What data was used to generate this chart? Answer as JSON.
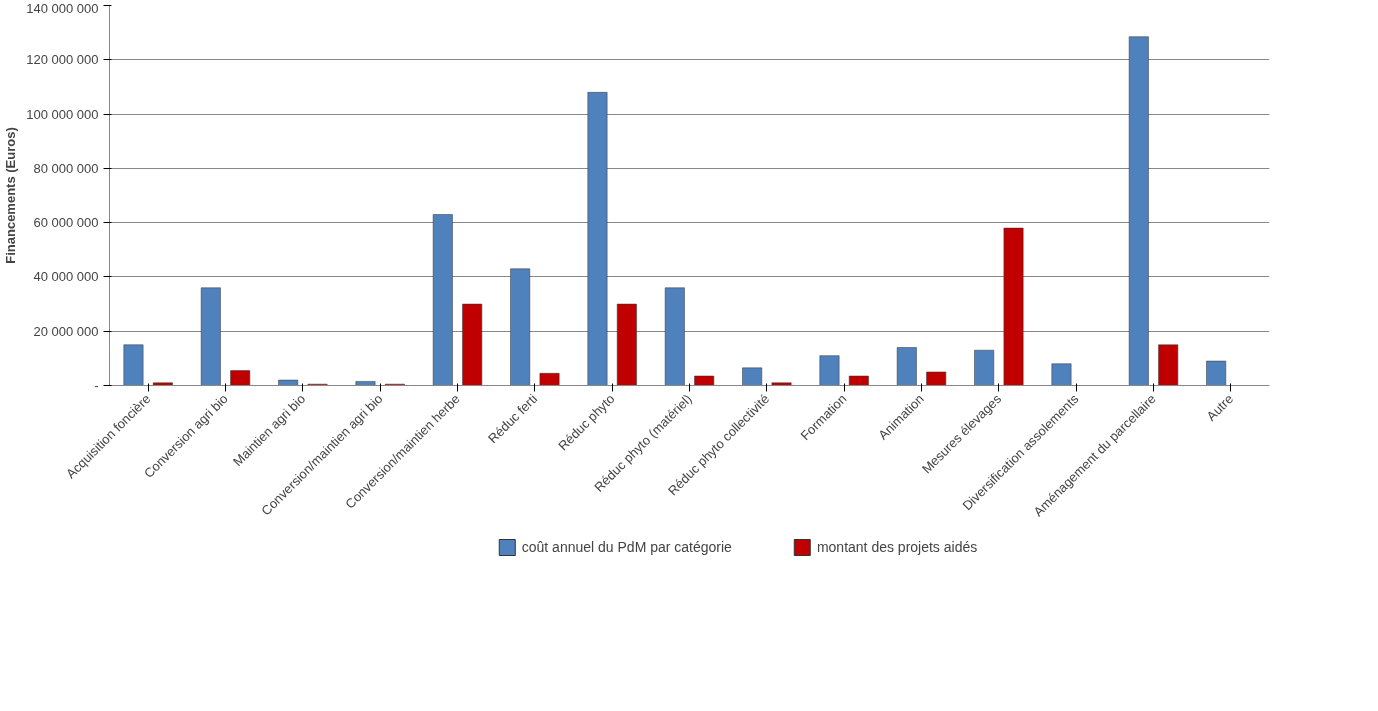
{
  "chart_data": {
    "type": "bar",
    "ylabel": "Financements (Euros)",
    "categories": [
      "Acquisition foncière",
      "Conversion agri bio",
      "Maintien agri bio",
      "Conversion/maintien agri bio",
      "Conversion/maintien herbe",
      "Réduc ferti",
      "Réduc phyto",
      "Réduc phyto (matériel)",
      "Réduc phyto collectivité",
      "Formation",
      "Animation",
      "Mesures élevages",
      "Diversification assolements",
      "Aménagement du parcellaire",
      "Autre"
    ],
    "series": [
      {
        "name": "coût annuel du PdM par catégorie",
        "color": "#4f81bd",
        "values": [
          15000000,
          36000000,
          2000000,
          1500000,
          63000000,
          43000000,
          108000000,
          36000000,
          6500000,
          11000000,
          14000000,
          13000000,
          8000000,
          128500000,
          9000000
        ]
      },
      {
        "name": "montant des projets aidés",
        "color": "#c00000",
        "values": [
          1000000,
          5500000,
          500000,
          500000,
          30000000,
          4500000,
          30000000,
          3500000,
          1000000,
          3500000,
          5000000,
          58000000,
          null,
          15000000,
          null
        ]
      }
    ],
    "ylim": [
      0,
      140000000
    ],
    "yticks": [
      {
        "value": 0,
        "label": "-"
      },
      {
        "value": 20000000,
        "label": "20 000 000"
      },
      {
        "value": 40000000,
        "label": "40 000 000"
      },
      {
        "value": 60000000,
        "label": "60 000 000"
      },
      {
        "value": 80000000,
        "label": "80 000 000"
      },
      {
        "value": 100000000,
        "label": "100 000 000"
      },
      {
        "value": 120000000,
        "label": "120 000 000"
      },
      {
        "value": 140000000,
        "label": "140 000 000"
      }
    ],
    "grid": "y",
    "legend": "bottom"
  }
}
